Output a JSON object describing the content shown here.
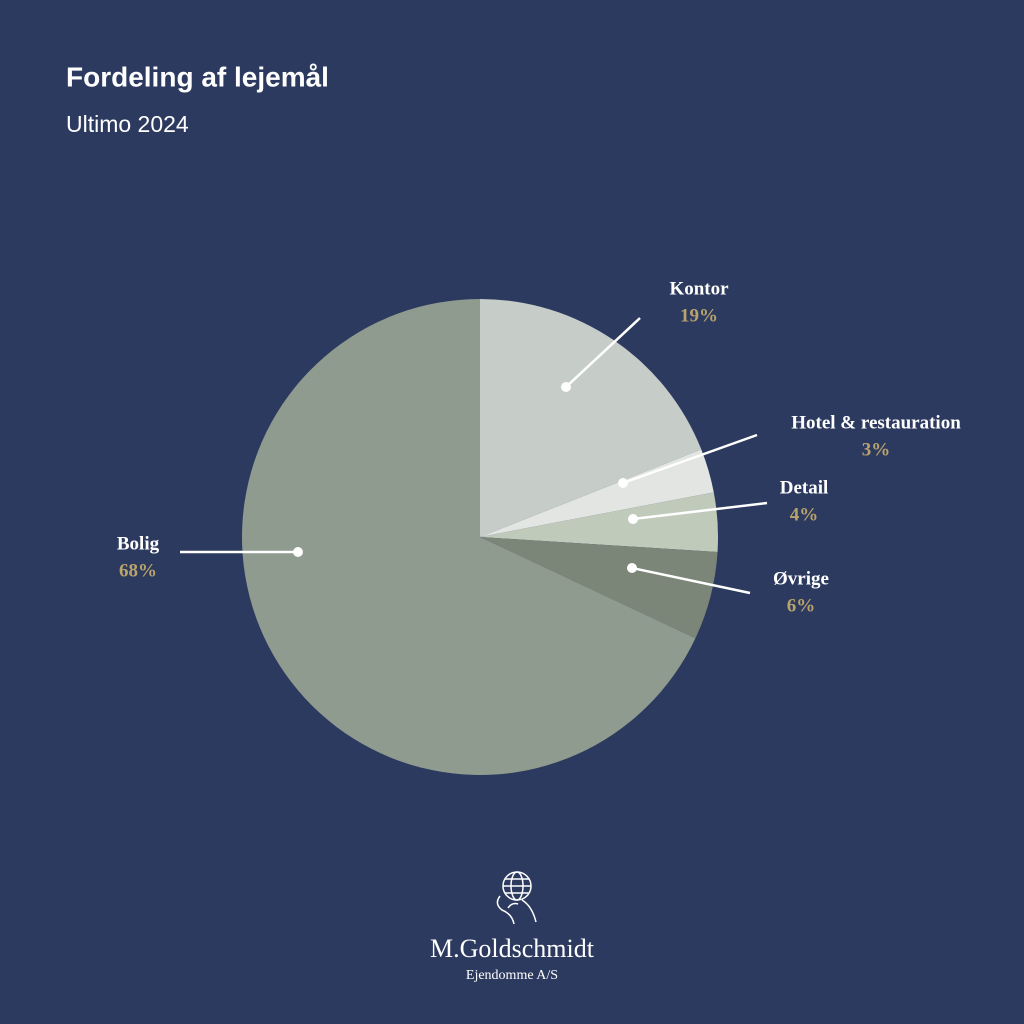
{
  "chart_data": {
    "type": "pie",
    "title": "Fordeling af lejemål",
    "subtitle": "Ultimo 2024",
    "categories": [
      "Kontor",
      "Hotel & restauration",
      "Detail",
      "Øvrige",
      "Bolig"
    ],
    "values": [
      19,
      3,
      4,
      6,
      68
    ],
    "value_labels": [
      "19%",
      "3%",
      "4%",
      "6%",
      "68%"
    ],
    "colors": [
      "#c6ccc7",
      "#e2e5e1",
      "#c0cabb",
      "#7b8679",
      "#8f9b8f"
    ]
  },
  "logo": {
    "name": "M.Goldschmidt",
    "tagline": "Ejendomme A/S"
  }
}
